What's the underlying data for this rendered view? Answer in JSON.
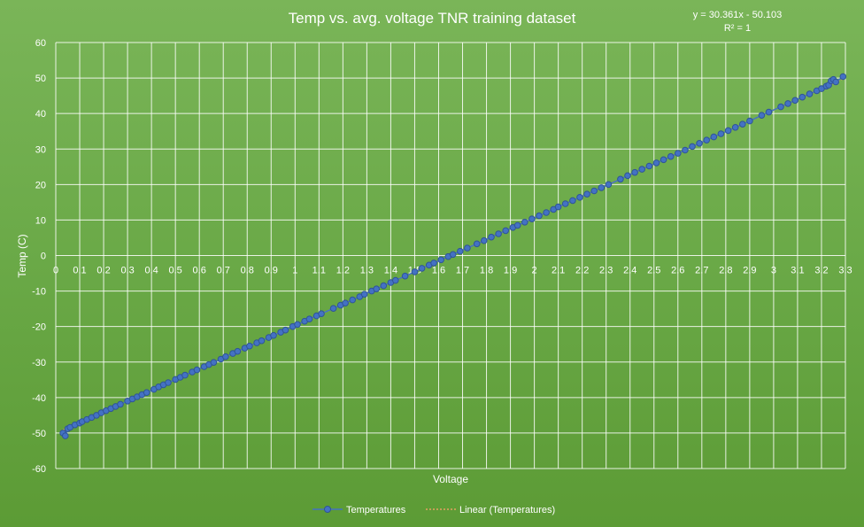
{
  "chart_data": {
    "type": "scatter",
    "title": "Temp vs. avg. voltage TNR training dataset",
    "xlabel": "Voltage",
    "ylabel": "Temp (C)",
    "xlim": [
      0,
      3.3
    ],
    "ylim": [
      -60,
      60
    ],
    "x_ticks": [
      "0",
      "0.1",
      "0.2",
      "0.3",
      "0.4",
      "0.5",
      "0.6",
      "0.7",
      "0.8",
      "0.9",
      "1",
      "1.1",
      "1.2",
      "1.3",
      "1.4",
      "1.5",
      "1.6",
      "1.7",
      "1.8",
      "1.9",
      "2",
      "2.1",
      "2.2",
      "2.3",
      "2.4",
      "2.5",
      "2.6",
      "2.7",
      "2.8",
      "2.9",
      "3",
      "3.1",
      "3.2",
      "3.3"
    ],
    "y_ticks": [
      "-60",
      "-50",
      "-40",
      "-30",
      "-20",
      "-10",
      "0",
      "10",
      "20",
      "30",
      "40",
      "50",
      "60"
    ],
    "grid": true,
    "legend_position": "bottom",
    "trendline": {
      "name": "Linear (Temperatures)",
      "slope": 30.361,
      "intercept": -50.103,
      "equation": "y = 30.361x - 50.103",
      "r_squared": "R² = 1",
      "color": "#e8a060"
    },
    "series": [
      {
        "name": "Temperatures",
        "color": "#4472c4",
        "marker_edge": "#2f5597",
        "x": [
          0.03,
          0.04,
          0.05,
          0.06,
          0.08,
          0.1,
          0.11,
          0.13,
          0.15,
          0.17,
          0.19,
          0.21,
          0.23,
          0.25,
          0.27,
          0.3,
          0.32,
          0.34,
          0.36,
          0.38,
          0.41,
          0.43,
          0.45,
          0.47,
          0.5,
          0.52,
          0.54,
          0.57,
          0.59,
          0.62,
          0.64,
          0.66,
          0.69,
          0.71,
          0.74,
          0.76,
          0.79,
          0.81,
          0.84,
          0.86,
          0.89,
          0.91,
          0.94,
          0.96,
          0.99,
          1.01,
          1.04,
          1.06,
          1.09,
          1.11,
          1.16,
          1.19,
          1.21,
          1.24,
          1.27,
          1.29,
          1.32,
          1.34,
          1.37,
          1.4,
          1.42,
          1.46,
          1.5,
          1.53,
          1.56,
          1.58,
          1.61,
          1.64,
          1.66,
          1.69,
          1.72,
          1.76,
          1.79,
          1.82,
          1.85,
          1.88,
          1.91,
          1.93,
          1.96,
          1.99,
          2.02,
          2.05,
          2.08,
          2.1,
          2.13,
          2.16,
          2.19,
          2.22,
          2.25,
          2.28,
          2.31,
          2.36,
          2.39,
          2.42,
          2.45,
          2.48,
          2.51,
          2.54,
          2.57,
          2.6,
          2.63,
          2.66,
          2.69,
          2.72,
          2.75,
          2.78,
          2.81,
          2.84,
          2.87,
          2.9,
          2.95,
          2.98,
          3.03,
          3.06,
          3.09,
          3.12,
          3.15,
          3.18,
          3.2,
          3.22,
          3.23,
          3.24,
          3.25,
          3.26,
          3.29
        ],
        "y": [
          -50.0,
          -50.8,
          -48.8,
          -48.4,
          -47.7,
          -47.2,
          -46.8,
          -46.2,
          -45.6,
          -45.0,
          -44.3,
          -43.7,
          -43.1,
          -42.5,
          -41.9,
          -41.0,
          -40.4,
          -39.8,
          -39.2,
          -38.6,
          -37.7,
          -37.0,
          -36.4,
          -35.8,
          -34.9,
          -34.3,
          -33.7,
          -32.8,
          -32.2,
          -31.3,
          -30.7,
          -30.1,
          -29.2,
          -28.5,
          -27.6,
          -27.0,
          -26.1,
          -25.5,
          -24.6,
          -24.0,
          -23.1,
          -22.5,
          -21.6,
          -21.0,
          -20.0,
          -19.4,
          -18.5,
          -17.9,
          -17.0,
          -16.4,
          -14.9,
          -14.0,
          -13.4,
          -12.5,
          -11.6,
          -10.9,
          -10.0,
          -9.4,
          -8.5,
          -7.6,
          -7.0,
          -5.8,
          -4.6,
          -3.6,
          -2.7,
          -2.1,
          -1.2,
          -0.3,
          0.3,
          1.2,
          2.1,
          3.3,
          4.2,
          5.2,
          6.1,
          7.0,
          7.9,
          8.5,
          9.4,
          10.3,
          11.2,
          12.1,
          13.0,
          13.7,
          14.6,
          15.5,
          16.4,
          17.3,
          18.2,
          19.1,
          20.0,
          21.5,
          22.5,
          23.4,
          24.3,
          25.2,
          26.1,
          27.0,
          27.9,
          28.8,
          29.7,
          30.7,
          31.6,
          32.5,
          33.4,
          34.3,
          35.2,
          36.1,
          37.0,
          37.9,
          39.5,
          40.4,
          41.9,
          42.8,
          43.7,
          44.6,
          45.5,
          46.4,
          47.0,
          47.7,
          48.0,
          49.2,
          49.6,
          48.9,
          50.4
        ]
      }
    ]
  }
}
